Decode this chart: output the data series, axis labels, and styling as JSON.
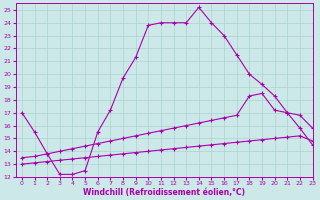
{
  "xlabel": "Windchill (Refroidissement éolien,°C)",
  "background_color": "#cce8e8",
  "grid_color": "#aad4cc",
  "line_color": "#aa00aa",
  "xlim": [
    -0.5,
    23
  ],
  "ylim": [
    12,
    25.5
  ],
  "xticks": [
    0,
    1,
    2,
    3,
    4,
    5,
    6,
    7,
    8,
    9,
    10,
    11,
    12,
    13,
    14,
    15,
    16,
    17,
    18,
    19,
    20,
    21,
    22,
    23
  ],
  "yticks": [
    12,
    13,
    14,
    15,
    16,
    17,
    18,
    19,
    20,
    21,
    22,
    23,
    24,
    25
  ],
  "line1_x": [
    0,
    1,
    2,
    3,
    4,
    5,
    6,
    7,
    8,
    9,
    10,
    11,
    12,
    13,
    14,
    15,
    16,
    17,
    18,
    19,
    20,
    21,
    22,
    23
  ],
  "line1_y": [
    17.0,
    15.5,
    13.8,
    12.2,
    12.2,
    12.5,
    15.5,
    17.2,
    19.7,
    21.3,
    23.8,
    24.0,
    24.0,
    24.0,
    25.2,
    24.0,
    23.0,
    21.5,
    20.0,
    19.2,
    18.3,
    17.0,
    15.8,
    14.5
  ],
  "line2_x": [
    0,
    1,
    2,
    3,
    4,
    5,
    6,
    7,
    8,
    9,
    10,
    11,
    12,
    13,
    14,
    15,
    16,
    17,
    18,
    19,
    20,
    21,
    22,
    23
  ],
  "line2_y": [
    13.0,
    13.1,
    13.2,
    13.3,
    13.4,
    13.5,
    13.6,
    13.7,
    13.8,
    13.9,
    14.0,
    14.1,
    14.2,
    14.3,
    14.4,
    14.5,
    14.6,
    14.7,
    14.8,
    14.9,
    15.0,
    15.1,
    15.2,
    14.8
  ],
  "line3_x": [
    0,
    1,
    2,
    3,
    4,
    5,
    6,
    7,
    8,
    9,
    10,
    11,
    12,
    13,
    14,
    15,
    16,
    17,
    18,
    19,
    20,
    21,
    22,
    23
  ],
  "line3_y": [
    13.5,
    13.6,
    13.8,
    14.0,
    14.2,
    14.4,
    14.6,
    14.8,
    15.0,
    15.2,
    15.4,
    15.6,
    15.8,
    16.0,
    16.2,
    16.4,
    16.6,
    16.8,
    18.3,
    18.5,
    17.2,
    17.0,
    16.8,
    15.8
  ]
}
